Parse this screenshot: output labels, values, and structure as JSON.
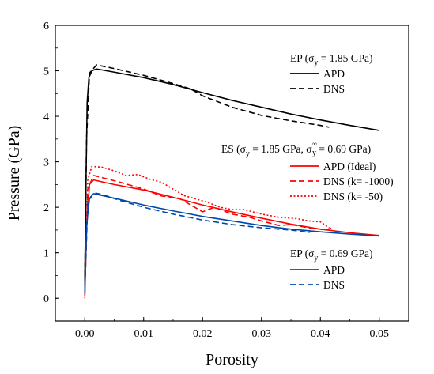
{
  "chart_data": {
    "type": "line",
    "title": "",
    "xlabel": "Porosity",
    "ylabel": "Pressure (GPa)",
    "xlim": [
      -0.005,
      0.055
    ],
    "ylim": [
      -0.5,
      6
    ],
    "xticks": [
      0.0,
      0.01,
      0.02,
      0.03,
      0.04,
      0.05
    ],
    "xtick_labels": [
      "0.00",
      "0.01",
      "0.02",
      "0.03",
      "0.04",
      "0.05"
    ],
    "yticks": [
      0,
      1,
      2,
      3,
      4,
      5,
      6
    ],
    "ytick_labels": [
      "0",
      "1",
      "2",
      "3",
      "4",
      "5",
      "6"
    ],
    "grid": false,
    "legend_groups": [
      {
        "heading": "EP (σy = 1.85 GPa)",
        "heading_main": "EP (σ",
        "heading_sub": "y",
        "heading_tail": " = 1.85 GPa)",
        "entries": [
          {
            "label": "APD",
            "color": "#000000",
            "dash": "solid"
          },
          {
            "label": "DNS",
            "color": "#000000",
            "dash": "dashed"
          }
        ]
      },
      {
        "heading": "ES (σy = 1.85 GPa, σy∞ = 0.69 GPa)",
        "heading_main": "ES (σ",
        "heading_sub": "y",
        "heading_mid": " = 1.85 GPa, σ",
        "heading_sub2": "y",
        "heading_sup2": "∞",
        "heading_tail": " = 0.69 GPa)",
        "entries": [
          {
            "label": "APD (Ideal)",
            "color": "#ff0000",
            "dash": "solid"
          },
          {
            "label": "DNS (k= -1000)",
            "color": "#ff0000",
            "dash": "dashed"
          },
          {
            "label": "DNS (k= -50)",
            "color": "#ff0000",
            "dash": "dotted"
          }
        ]
      },
      {
        "heading": "EP (σy = 0.69 GPa)",
        "heading_main": "EP (σ",
        "heading_sub": "y",
        "heading_tail": " = 0.69 GPa)",
        "entries": [
          {
            "label": "APD",
            "color": "#0047ab",
            "dash": "solid"
          },
          {
            "label": "DNS",
            "color": "#0047ab",
            "dash": "dashed"
          }
        ]
      }
    ],
    "series": [
      {
        "group": "EP (σy = 1.85 GPa)",
        "name": "APD",
        "color": "#000000",
        "dash": "solid",
        "points": [
          [
            0,
            0.4
          ],
          [
            0.0002,
            2.5
          ],
          [
            0.0004,
            4.3
          ],
          [
            0.0007,
            4.85
          ],
          [
            0.0012,
            5.0
          ],
          [
            0.002,
            5.04
          ],
          [
            0.005,
            4.97
          ],
          [
            0.01,
            4.85
          ],
          [
            0.015,
            4.7
          ],
          [
            0.02,
            4.52
          ],
          [
            0.025,
            4.35
          ],
          [
            0.03,
            4.2
          ],
          [
            0.035,
            4.05
          ],
          [
            0.04,
            3.92
          ],
          [
            0.045,
            3.8
          ],
          [
            0.05,
            3.69
          ]
        ]
      },
      {
        "group": "EP (σy = 1.85 GPa)",
        "name": "DNS",
        "color": "#000000",
        "dash": "dashed",
        "points": [
          [
            0,
            0.3
          ],
          [
            0.0003,
            3.5
          ],
          [
            0.0008,
            4.95
          ],
          [
            0.002,
            5.13
          ],
          [
            0.005,
            5.05
          ],
          [
            0.01,
            4.9
          ],
          [
            0.015,
            4.72
          ],
          [
            0.018,
            4.6
          ],
          [
            0.02,
            4.45
          ],
          [
            0.025,
            4.2
          ],
          [
            0.03,
            4.02
          ],
          [
            0.035,
            3.9
          ],
          [
            0.04,
            3.8
          ],
          [
            0.0415,
            3.76
          ]
        ]
      },
      {
        "group": "ES (σy = 1.85 GPa, σy∞ = 0.69 GPa)",
        "name": "APD (Ideal)",
        "color": "#ff0000",
        "dash": "solid",
        "points": [
          [
            0,
            0.1
          ],
          [
            0.0003,
            1.5
          ],
          [
            0.0008,
            2.5
          ],
          [
            0.0015,
            2.6
          ],
          [
            0.005,
            2.5
          ],
          [
            0.01,
            2.38
          ],
          [
            0.015,
            2.22
          ],
          [
            0.02,
            2.05
          ],
          [
            0.025,
            1.9
          ],
          [
            0.03,
            1.76
          ],
          [
            0.035,
            1.63
          ],
          [
            0.04,
            1.52
          ],
          [
            0.045,
            1.44
          ],
          [
            0.05,
            1.38
          ]
        ]
      },
      {
        "group": "ES (σy = 1.85 GPa, σy∞ = 0.69 GPa)",
        "name": "DNS (k= -1000)",
        "color": "#ff0000",
        "dash": "dashed",
        "points": [
          [
            0,
            0.05
          ],
          [
            0.0005,
            2.4
          ],
          [
            0.0015,
            2.7
          ],
          [
            0.003,
            2.65
          ],
          [
            0.006,
            2.55
          ],
          [
            0.01,
            2.4
          ],
          [
            0.013,
            2.25
          ],
          [
            0.016,
            2.2
          ],
          [
            0.018,
            2.05
          ],
          [
            0.02,
            1.9
          ],
          [
            0.022,
            2.0
          ],
          [
            0.025,
            1.85
          ],
          [
            0.028,
            1.78
          ],
          [
            0.03,
            1.7
          ],
          [
            0.033,
            1.6
          ],
          [
            0.035,
            1.62
          ],
          [
            0.038,
            1.55
          ],
          [
            0.041,
            1.5
          ],
          [
            0.042,
            1.55
          ]
        ]
      },
      {
        "group": "ES (σy = 1.85 GPa, σy∞ = 0.69 GPa)",
        "name": "DNS (k= -50)",
        "color": "#ff0000",
        "dash": "dotted",
        "points": [
          [
            0,
            0.0
          ],
          [
            0.0005,
            2.6
          ],
          [
            0.0012,
            2.9
          ],
          [
            0.003,
            2.88
          ],
          [
            0.005,
            2.8
          ],
          [
            0.007,
            2.7
          ],
          [
            0.009,
            2.72
          ],
          [
            0.011,
            2.62
          ],
          [
            0.013,
            2.55
          ],
          [
            0.015,
            2.4
          ],
          [
            0.017,
            2.25
          ],
          [
            0.019,
            2.18
          ],
          [
            0.021,
            2.1
          ],
          [
            0.023,
            2.0
          ],
          [
            0.025,
            1.95
          ],
          [
            0.027,
            1.95
          ],
          [
            0.03,
            1.85
          ],
          [
            0.033,
            1.78
          ],
          [
            0.036,
            1.75
          ],
          [
            0.038,
            1.7
          ],
          [
            0.04,
            1.68
          ],
          [
            0.0415,
            1.55
          ]
        ]
      },
      {
        "group": "EP (σy = 0.69 GPa)",
        "name": "APD",
        "color": "#0047ab",
        "dash": "solid",
        "points": [
          [
            0,
            0.2
          ],
          [
            0.0003,
            1.6
          ],
          [
            0.0008,
            2.2
          ],
          [
            0.0015,
            2.3
          ],
          [
            0.005,
            2.2
          ],
          [
            0.01,
            2.05
          ],
          [
            0.015,
            1.92
          ],
          [
            0.02,
            1.8
          ],
          [
            0.025,
            1.7
          ],
          [
            0.03,
            1.6
          ],
          [
            0.035,
            1.52
          ],
          [
            0.04,
            1.46
          ],
          [
            0.045,
            1.41
          ],
          [
            0.05,
            1.37
          ]
        ]
      },
      {
        "group": "EP (σy = 0.69 GPa)",
        "name": "DNS",
        "color": "#0047ab",
        "dash": "dashed",
        "points": [
          [
            0,
            0.1
          ],
          [
            0.0005,
            2.1
          ],
          [
            0.0015,
            2.32
          ],
          [
            0.003,
            2.28
          ],
          [
            0.006,
            2.15
          ],
          [
            0.01,
            2.0
          ],
          [
            0.015,
            1.85
          ],
          [
            0.02,
            1.72
          ],
          [
            0.025,
            1.62
          ],
          [
            0.03,
            1.55
          ],
          [
            0.035,
            1.5
          ],
          [
            0.038,
            1.45
          ],
          [
            0.039,
            1.48
          ]
        ]
      }
    ]
  }
}
